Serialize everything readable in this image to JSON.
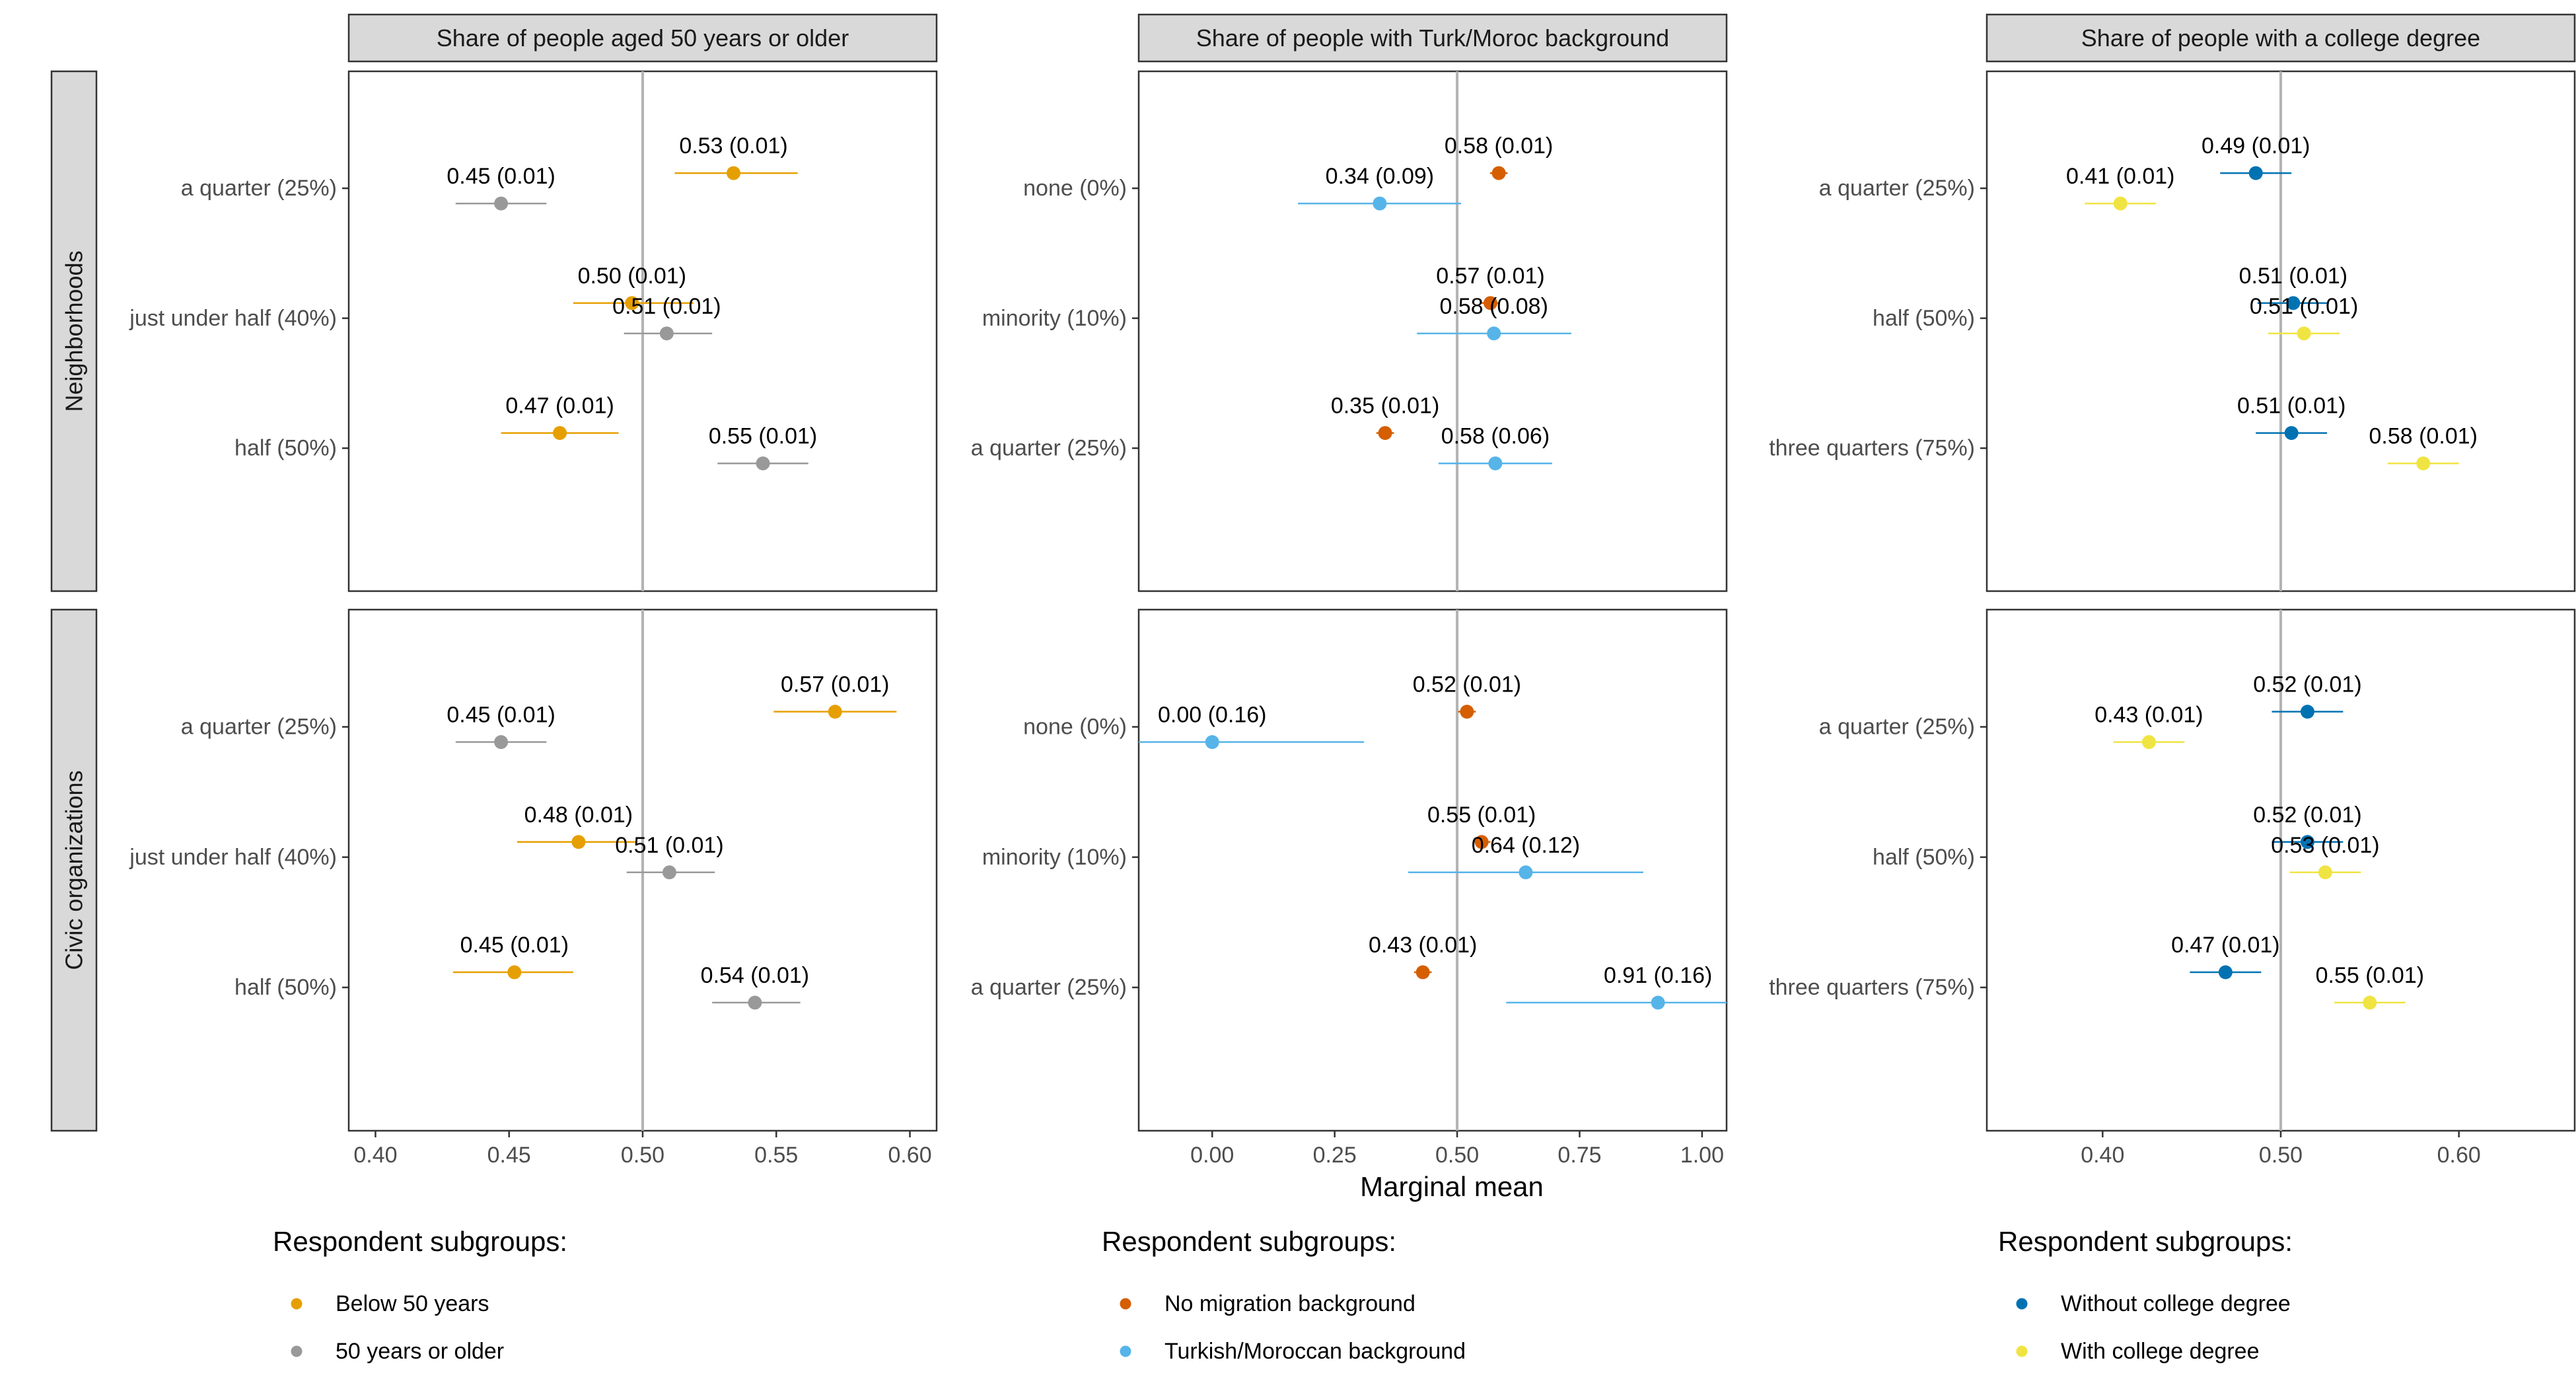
{
  "chart_data": {
    "type": "scatter",
    "xlabel": "Marginal mean",
    "row_strips": [
      "Neighborhoods",
      "Civic organizations"
    ],
    "legend_title": "Respondent subgroups:",
    "panels": [
      {
        "title": "Share of people aged 50 years or older",
        "xlim": [
          0.39,
          0.61
        ],
        "xticks": [
          "0.40",
          "0.45",
          "0.50",
          "0.55",
          "0.60"
        ],
        "ref_line": 0.5,
        "categories": [
          "a quarter (25%)",
          "just under half (40%)",
          "half (50%)"
        ],
        "legend": [
          {
            "name": "Below 50 years",
            "color": "#E69F00"
          },
          {
            "name": "50 years or older",
            "color": "#999999"
          }
        ],
        "rows": [
          {
            "series": [
              {
                "name": "Below 50 years",
                "values": [
                  0.534,
                  0.496,
                  0.469
                ],
                "ci_low": [
                  0.512,
                  0.474,
                  0.447
                ],
                "ci_high": [
                  0.558,
                  0.519,
                  0.491
                ],
                "labels": [
                  "0.53 (0.01)",
                  "0.50 (0.01)",
                  "0.47 (0.01)"
                ]
              },
              {
                "name": "50 years or older",
                "values": [
                  0.447,
                  0.509,
                  0.545
                ],
                "ci_low": [
                  0.43,
                  0.493,
                  0.528
                ],
                "ci_high": [
                  0.464,
                  0.526,
                  0.562
                ],
                "labels": [
                  "0.45 (0.01)",
                  "0.51 (0.01)",
                  "0.55 (0.01)"
                ]
              }
            ]
          },
          {
            "series": [
              {
                "name": "Below 50 years",
                "values": [
                  0.572,
                  0.476,
                  0.452
                ],
                "ci_low": [
                  0.549,
                  0.453,
                  0.429
                ],
                "ci_high": [
                  0.595,
                  0.498,
                  0.474
                ],
                "labels": [
                  "0.57 (0.01)",
                  "0.48 (0.01)",
                  "0.45 (0.01)"
                ]
              },
              {
                "name": "50 years or older",
                "values": [
                  0.447,
                  0.51,
                  0.542
                ],
                "ci_low": [
                  0.43,
                  0.494,
                  0.526
                ],
                "ci_high": [
                  0.464,
                  0.527,
                  0.559
                ],
                "labels": [
                  "0.45 (0.01)",
                  "0.51 (0.01)",
                  "0.54 (0.01)"
                ]
              }
            ]
          }
        ]
      },
      {
        "title": "Share of people with Turk/Moroc background",
        "xlim": [
          -0.15,
          1.05
        ],
        "xticks": [
          "0.00",
          "0.25",
          "0.50",
          "0.75",
          "1.00"
        ],
        "ref_line": 0.5,
        "categories": [
          "none (0%)",
          "minority (10%)",
          "a quarter (25%)"
        ],
        "legend": [
          {
            "name": "No migration background",
            "color": "#D55E00"
          },
          {
            "name": "Turkish/Moroccan background",
            "color": "#56B4E9"
          }
        ],
        "rows": [
          {
            "series": [
              {
                "name": "No migration background",
                "values": [
                  0.585,
                  0.568,
                  0.353
                ],
                "ci_low": [
                  0.567,
                  0.55,
                  0.335
                ],
                "ci_high": [
                  0.603,
                  0.586,
                  0.371
                ],
                "labels": [
                  "0.58 (0.01)",
                  "0.57 (0.01)",
                  "0.35 (0.01)"
                ]
              },
              {
                "name": "Turkish/Moroccan background",
                "values": [
                  0.342,
                  0.575,
                  0.578
                ],
                "ci_low": [
                  0.175,
                  0.418,
                  0.462
                ],
                "ci_high": [
                  0.508,
                  0.733,
                  0.694
                ],
                "labels": [
                  "0.34 (0.09)",
                  "0.58 (0.08)",
                  "0.58 (0.06)"
                ]
              }
            ]
          },
          {
            "series": [
              {
                "name": "No migration background",
                "values": [
                  0.52,
                  0.55,
                  0.43
                ],
                "ci_low": [
                  0.502,
                  0.532,
                  0.412
                ],
                "ci_high": [
                  0.538,
                  0.568,
                  0.448
                ],
                "labels": [
                  "0.52 (0.01)",
                  "0.55 (0.01)",
                  "0.43 (0.01)"
                ]
              },
              {
                "name": "Turkish/Moroccan background",
                "values": [
                  0.0,
                  0.64,
                  0.91
                ],
                "ci_low": [
                  -0.31,
                  0.4,
                  0.6
                ],
                "ci_high": [
                  0.31,
                  0.88,
                  1.22
                ],
                "labels": [
                  "0.00 (0.16)",
                  "0.64 (0.12)",
                  "0.91 (0.16)"
                ]
              }
            ]
          }
        ]
      },
      {
        "title": "Share of people with a college degree",
        "xlim": [
          0.335,
          0.665
        ],
        "xticks": [
          "0.40",
          "0.50",
          "0.60"
        ],
        "ref_line": 0.5,
        "categories": [
          "a quarter (25%)",
          "half (50%)",
          "three quarters (75%)"
        ],
        "legend": [
          {
            "name": "Without college degree",
            "color": "#0072B2"
          },
          {
            "name": "With college degree",
            "color": "#F0E442"
          }
        ],
        "rows": [
          {
            "series": [
              {
                "name": "Without college degree",
                "values": [
                  0.486,
                  0.507,
                  0.506
                ],
                "ci_low": [
                  0.466,
                  0.487,
                  0.486
                ],
                "ci_high": [
                  0.506,
                  0.527,
                  0.526
                ],
                "labels": [
                  "0.49 (0.01)",
                  "0.51 (0.01)",
                  "0.51 (0.01)"
                ]
              },
              {
                "name": "With college degree",
                "values": [
                  0.41,
                  0.513,
                  0.58
                ],
                "ci_low": [
                  0.39,
                  0.493,
                  0.56
                ],
                "ci_high": [
                  0.43,
                  0.533,
                  0.6
                ],
                "labels": [
                  "0.41 (0.01)",
                  "0.51 (0.01)",
                  "0.58 (0.01)"
                ]
              }
            ]
          },
          {
            "series": [
              {
                "name": "Without college degree",
                "values": [
                  0.515,
                  0.515,
                  0.469
                ],
                "ci_low": [
                  0.495,
                  0.495,
                  0.449
                ],
                "ci_high": [
                  0.535,
                  0.535,
                  0.489
                ],
                "labels": [
                  "0.52 (0.01)",
                  "0.52 (0.01)",
                  "0.47 (0.01)"
                ]
              },
              {
                "name": "With college degree",
                "values": [
                  0.426,
                  0.525,
                  0.55
                ],
                "ci_low": [
                  0.406,
                  0.505,
                  0.53
                ],
                "ci_high": [
                  0.446,
                  0.545,
                  0.57
                ],
                "labels": [
                  "0.43 (0.01)",
                  "0.53 (0.01)",
                  "0.55 (0.01)"
                ]
              }
            ]
          }
        ]
      }
    ]
  }
}
